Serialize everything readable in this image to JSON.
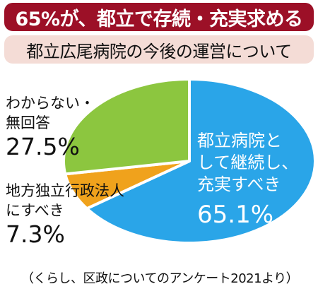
{
  "headline": "65%が、都立で存続・充実求める",
  "subtitle": "都立広尾病院の今後の運営について",
  "colors": {
    "headline_bg": "#9c1027",
    "subtitle_bg": "#f4dcd6",
    "segment_1": "#2aa5e8",
    "segment_2": "#f0a21c",
    "segment_3": "#8cc63f"
  },
  "chart_data": {
    "type": "pie",
    "title": "都立広尾病院の今後の運営について",
    "slices": [
      {
        "label_lines": [
          "都立病院と",
          "して継続し、",
          "充実すべき"
        ],
        "value": 65.1,
        "value_text": "65.1%"
      },
      {
        "label_lines": [
          "地方独立行政法人",
          "にすべき"
        ],
        "value": 7.3,
        "value_text": "7.3%"
      },
      {
        "label_lines": [
          "わからない・",
          "無回答"
        ],
        "value": 27.5,
        "value_text": "27.5%"
      }
    ]
  },
  "source_note": "（くらし、区政についてのアンケート2021より）"
}
